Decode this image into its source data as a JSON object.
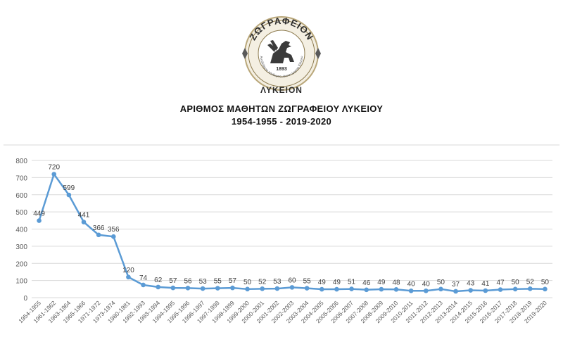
{
  "logo": {
    "top_text": "ΖΩΓΡΑΦΕΙΟΝ",
    "bottom_text": "ΛΥΚΕΙΟΝ",
    "motto": "Αυτόδιδακτα πάνθυμος μάννον έρχεται Ελλήνω",
    "year": "1893",
    "icon": "griffin-emblem"
  },
  "title": {
    "line1": "ΑΡΙΘΜΟΣ ΜΑΘΗΤΩΝ ΖΩΓΡΑΦΕΙΟΥ ΛΥΚΕΙΟΥ",
    "line2": "1954-1955  -  2019-2020"
  },
  "colors": {
    "line": "#5b9bd5",
    "grid": "#d9d9d9",
    "axis_text": "#595959",
    "logo_gold": "#b9a77a"
  },
  "chart_data": {
    "type": "line",
    "title": "",
    "xlabel": "",
    "ylabel": "",
    "ylim": [
      0,
      800
    ],
    "yticks": [
      0,
      100,
      200,
      300,
      400,
      500,
      600,
      700,
      800
    ],
    "grid": true,
    "legend": "none",
    "categories": [
      "1954-1955",
      "1961-1962",
      "1963-1964",
      "1965-1966",
      "1971-1972",
      "1973-1974",
      "1980-1981",
      "1992-1993",
      "1993-1994",
      "1994-1995",
      "1995-1996",
      "1996-1997",
      "1997-1998",
      "1998-1999",
      "1999-2000",
      "2000-2001",
      "2001-2002",
      "2002-2003",
      "2003-2004",
      "2004-2005",
      "2005-2006",
      "2006-2007",
      "2007-2008",
      "2008-2009",
      "2009-2010",
      "2010-2011",
      "2011-2012",
      "2012-2013",
      "2013-2014",
      "2014-2015",
      "2015-2016",
      "2016-2017",
      "2017-2018",
      "2018-2019",
      "2019-2020"
    ],
    "values": [
      449,
      720,
      599,
      441,
      366,
      356,
      120,
      74,
      62,
      57,
      56,
      53,
      55,
      57,
      50,
      52,
      53,
      60,
      55,
      49,
      49,
      51,
      46,
      49,
      48,
      40,
      40,
      50,
      37,
      43,
      41,
      47,
      50,
      52,
      50
    ]
  }
}
